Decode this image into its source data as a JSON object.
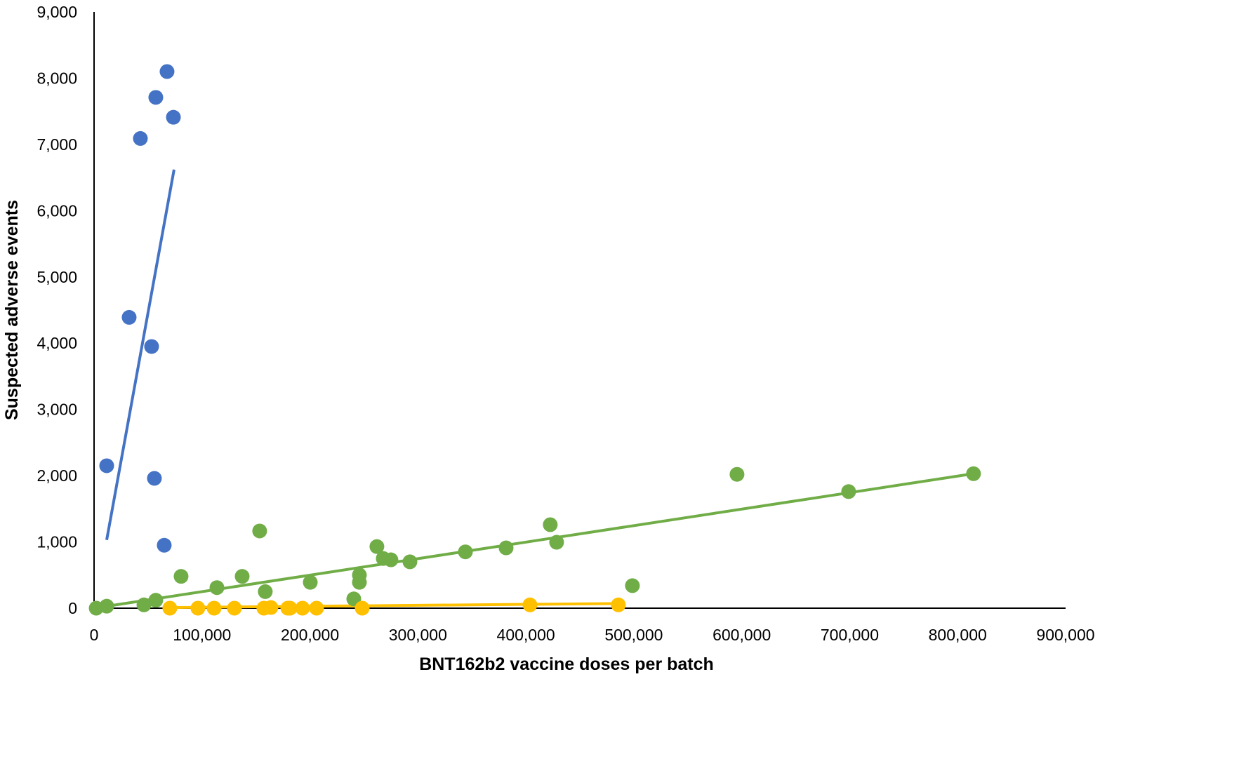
{
  "chart_data": {
    "type": "scatter",
    "title": "",
    "xlabel": "BNT162b2 vaccine doses per batch",
    "ylabel": "Suspected adverse events",
    "xlim": [
      0,
      900000
    ],
    "ylim": [
      0,
      9000
    ],
    "xticks": [
      "0",
      "100,000",
      "200,000",
      "300,000",
      "400,000",
      "500,000",
      "600,000",
      "700,000",
      "800,000",
      "900,000"
    ],
    "yticks": [
      "0",
      "1,000",
      "2,000",
      "3,000",
      "4,000",
      "5,000",
      "6,000",
      "7,000",
      "8,000",
      "9,000"
    ],
    "grid": false,
    "legend": "none",
    "series": [
      {
        "color": "#4472C4",
        "points": [
          [
            67600,
            8100
          ],
          [
            57200,
            7710
          ],
          [
            73500,
            7410
          ],
          [
            42900,
            7090
          ],
          [
            32500,
            4390
          ],
          [
            53300,
            3950
          ],
          [
            11700,
            2150
          ],
          [
            55900,
            1960
          ],
          [
            65000,
            950
          ]
        ],
        "trendline": [
          [
            11700,
            1030
          ],
          [
            74100,
            6620
          ]
        ]
      },
      {
        "color": "#70AD47",
        "points": [
          [
            2000,
            0
          ],
          [
            11700,
            30
          ],
          [
            46200,
            50
          ],
          [
            57200,
            120
          ],
          [
            80600,
            480
          ],
          [
            113800,
            310
          ],
          [
            137200,
            480
          ],
          [
            153400,
            1165
          ],
          [
            158600,
            250
          ],
          [
            200300,
            390
          ],
          [
            240600,
            140
          ],
          [
            245800,
            500
          ],
          [
            245800,
            390
          ],
          [
            262000,
            930
          ],
          [
            267900,
            750
          ],
          [
            275000,
            730
          ],
          [
            292600,
            700
          ],
          [
            344000,
            850
          ],
          [
            381700,
            910
          ],
          [
            422600,
            1260
          ],
          [
            428500,
            995
          ],
          [
            498700,
            340
          ],
          [
            595600,
            2020
          ],
          [
            699000,
            1760
          ],
          [
            814700,
            2030
          ]
        ],
        "trendline": [
          [
            0,
            0
          ],
          [
            814700,
            2030
          ]
        ]
      },
      {
        "color": "#FFC000",
        "points": [
          [
            70200,
            0
          ],
          [
            96200,
            0
          ],
          [
            111200,
            0
          ],
          [
            130000,
            0
          ],
          [
            157300,
            0
          ],
          [
            163800,
            10
          ],
          [
            179500,
            0
          ],
          [
            181500,
            0
          ],
          [
            193100,
            0
          ],
          [
            206100,
            0
          ],
          [
            248400,
            0
          ],
          [
            403800,
            50
          ],
          [
            485700,
            50
          ]
        ],
        "trendline": [
          [
            70200,
            10
          ],
          [
            485700,
            70
          ]
        ]
      }
    ]
  }
}
